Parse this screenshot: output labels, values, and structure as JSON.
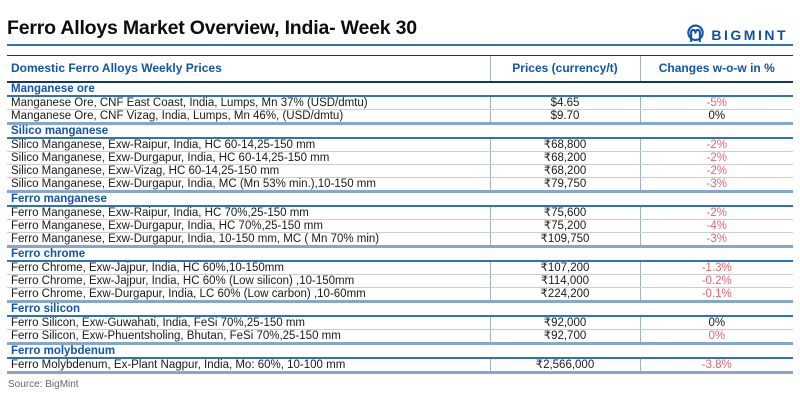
{
  "brand": {
    "name": "BIGMINT"
  },
  "title": "Ferro Alloys Market Overview, India- Week 30",
  "source": "Source: BigMint",
  "colors": {
    "accent_blue": "#1155AC",
    "rule_blue": "#2E74B5",
    "dark_navy": "#17375E",
    "section_end_blue": "#84A7CB",
    "grid_gray": "#C9CDD4",
    "vertical_gray": "#9FB1C8",
    "negative_red": "#E9646B",
    "text_dark": "#1A1A1A",
    "source_gray": "#666666",
    "brand_blue": "#1252A8"
  },
  "table": {
    "headers": [
      "Domestic Ferro Alloys Weekly Prices",
      "Prices (currency/t)",
      "Changes w-o-w in %"
    ],
    "sections": [
      {
        "name": "Manganese ore",
        "rows": [
          {
            "product": "Manganese Ore, CNF East Coast, India, Lumps, Mn 37% (USD/dmtu)",
            "price": "$4.65",
            "change": "-5%",
            "change_red": true
          },
          {
            "product": "Manganese Ore, CNF Vizag, India, Lumps, Mn 46%, (USD/dmtu)",
            "price": "$9.70",
            "change": "0%",
            "change_red": false
          }
        ]
      },
      {
        "name": "Silico manganese",
        "rows": [
          {
            "product": "Silico Manganese, Exw-Raipur, India, HC 60-14,25-150 mm",
            "price": "₹68,800",
            "change": "-2%",
            "change_red": true
          },
          {
            "product": "Silico Manganese, Exw-Durgapur, India, HC 60-14,25-150 mm",
            "price": "₹68,200",
            "change": "-2%",
            "change_red": true
          },
          {
            "product": "Silico Manganese, Exw-Vizag, HC 60-14,25-150 mm",
            "price": "₹68,200",
            "change": "-2%",
            "change_red": true
          },
          {
            "product": "Silico Manganese, Exw-Durgapur, India, MC (Mn 53% min.),10-150 mm",
            "price": "₹79,750",
            "change": "-3%",
            "change_red": true
          }
        ]
      },
      {
        "name": "Ferro manganese",
        "rows": [
          {
            "product": "Ferro Manganese, Exw-Raipur, India, HC 70%,25-150 mm",
            "price": "₹75,600",
            "change": "-2%",
            "change_red": true
          },
          {
            "product": "Ferro Manganese, Exw-Durgapur, India, HC 70%,25-150 mm",
            "price": "₹75,200",
            "change": "-4%",
            "change_red": true
          },
          {
            "product": "Ferro Manganese, Exw-Durgapur, India, 10-150 mm, MC ( Mn 70% min)",
            "price": "₹109,750",
            "change": "-3%",
            "change_red": true
          }
        ]
      },
      {
        "name": "Ferro chrome",
        "rows": [
          {
            "product": "Ferro Chrome, Exw-Jajpur, India, HC 60%,10-150mm",
            "price": "₹107,200",
            "change": "-1.3%",
            "change_red": true
          },
          {
            "product": "Ferro Chrome, Exw-Jajpur, India, HC 60% (Low silicon) ,10-150mm",
            "price": "₹114,000",
            "change": "-0.2%",
            "change_red": true
          },
          {
            "product": "Ferro Chrome, Exw-Durgapur, India, LC 60% (Low carbon) ,10-60mm",
            "price": "₹224,200",
            "change": "-0.1%",
            "change_red": true
          }
        ]
      },
      {
        "name": "Ferro silicon",
        "rows": [
          {
            "product": "Ferro Silicon, Exw-Guwahati, India, FeSi 70%,25-150 mm",
            "price": "₹92,000",
            "change": "0%",
            "change_red": false
          },
          {
            "product": "Ferro Silicon, Exw-Phuentsholing, Bhutan, FeSi 70%,25-150 mm",
            "price": "₹92,700",
            "change": "0%",
            "change_red": true
          }
        ]
      },
      {
        "name": "Ferro molybdenum",
        "rows": [
          {
            "product": "Ferro Molybdenum, Ex-Plant Nagpur, India, Mo: 60%, 10-100 mm",
            "price": "₹2,566,000",
            "change": "-3.8%",
            "change_red": true
          }
        ]
      }
    ]
  }
}
